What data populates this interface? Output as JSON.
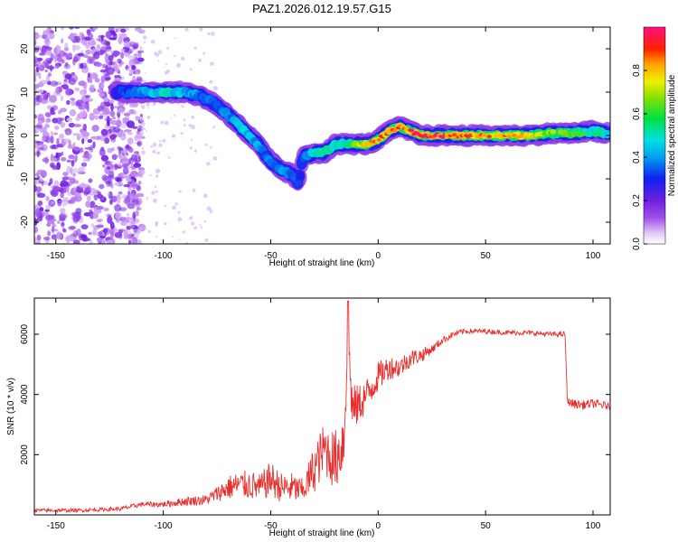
{
  "figure_title": "PAZ1.2026.012.19.57.G15",
  "chart_data": [
    {
      "type": "heatmap",
      "title": "",
      "xlabel": "Height of straight line (km)",
      "ylabel": "Frequency (Hz)",
      "xlim": [
        -160,
        108
      ],
      "ylim": [
        -25,
        25
      ],
      "xticks": [
        -150,
        -100,
        -50,
        0,
        50,
        100
      ],
      "yticks": [
        -20,
        -10,
        0,
        10,
        20
      ],
      "colorbar": {
        "label": "Normalized spectral amplitude",
        "range": [
          0.0,
          1.0
        ],
        "ticks": [
          0.0,
          0.2,
          0.4,
          0.6,
          0.8
        ],
        "colormap": "rainbow (white-violet-blue-cyan-green-yellow-orange-red-magenta)"
      },
      "ridge": {
        "x": [
          -122,
          -110,
          -100,
          -90,
          -82,
          -75,
          -68,
          -62,
          -56,
          -50,
          -45,
          -40,
          -37,
          -35,
          -30,
          -25,
          -20,
          -15,
          -10,
          -5,
          0,
          5,
          10,
          15,
          20,
          30,
          40,
          50,
          60,
          70,
          80,
          90,
          100,
          107
        ],
        "y": [
          10,
          10,
          10,
          10,
          9,
          7,
          4,
          1,
          -2,
          -6,
          -8,
          -9,
          -11,
          -5,
          -4,
          -4,
          -2,
          -2,
          -2,
          -2,
          -1,
          1,
          2,
          1,
          0,
          0,
          0,
          0,
          0,
          0,
          0.5,
          0.5,
          1,
          0.5
        ],
        "amplitude": [
          0.3,
          0.4,
          0.5,
          0.45,
          0.35,
          0.35,
          0.4,
          0.45,
          0.4,
          0.35,
          0.4,
          0.35,
          0.3,
          0.3,
          0.5,
          0.55,
          0.5,
          0.5,
          0.65,
          0.8,
          0.85,
          0.9,
          0.9,
          0.9,
          1.0,
          0.95,
          0.9,
          0.85,
          0.8,
          0.75,
          0.65,
          0.6,
          0.55,
          0.5
        ]
      },
      "noise_region_x": [
        -160,
        -120
      ]
    },
    {
      "type": "line",
      "title": "",
      "xlabel": "Height of straight line (km)",
      "ylabel": "SNR (10 * v/v)",
      "xlim": [
        -160,
        108
      ],
      "ylim": [
        0,
        7200
      ],
      "xticks": [
        -150,
        -100,
        -50,
        0,
        50,
        100
      ],
      "yticks": [
        2000,
        4000,
        6000
      ],
      "series": [
        {
          "color": "#e8302e",
          "x": [
            -160,
            -140,
            -120,
            -110,
            -100,
            -90,
            -80,
            -75,
            -70,
            -65,
            -60,
            -55,
            -50,
            -45,
            -40,
            -35,
            -30,
            -25,
            -20,
            -16,
            -14,
            -12,
            -10,
            -5,
            0,
            5,
            10,
            15,
            20,
            25,
            30,
            35,
            40,
            50,
            60,
            70,
            80,
            87,
            88,
            90,
            95,
            100,
            108
          ],
          "y": [
            150,
            150,
            200,
            350,
            350,
            450,
            500,
            700,
            900,
            1000,
            1000,
            900,
            1200,
            900,
            900,
            800,
            1500,
            2200,
            1800,
            2500,
            6000,
            3500,
            3600,
            4000,
            4600,
            4900,
            4900,
            5200,
            5300,
            5500,
            5800,
            6000,
            6100,
            6100,
            6050,
            6050,
            6000,
            6000,
            3800,
            3700,
            3650,
            3700,
            3600
          ],
          "noise": [
            60,
            60,
            70,
            80,
            100,
            150,
            180,
            250,
            400,
            450,
            500,
            450,
            600,
            500,
            500,
            400,
            800,
            900,
            1000,
            1200,
            800,
            900,
            700,
            600,
            500,
            400,
            350,
            300,
            250,
            150,
            120,
            100,
            90,
            80,
            80,
            80,
            80,
            100,
            120,
            150,
            150,
            150,
            120
          ]
        }
      ]
    }
  ]
}
